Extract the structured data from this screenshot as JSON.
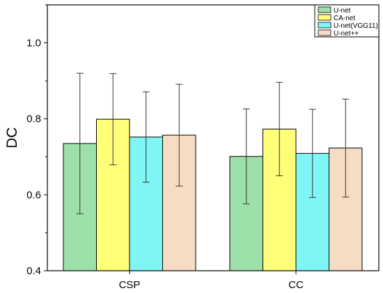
{
  "chart_data": {
    "type": "bar",
    "title": "",
    "xlabel": "",
    "ylabel": "DC",
    "ylim": [
      0.4,
      1.1
    ],
    "yticks": [
      0.4,
      0.6,
      0.8,
      1.0
    ],
    "ytick_labels": [
      "0.4",
      "0.6",
      "0.8",
      "1.0"
    ],
    "categories": [
      "CSP",
      "CC"
    ],
    "series": [
      {
        "name": "U-net",
        "color": "#9ee0a9",
        "values": [
          0.735,
          0.701
        ],
        "errors": [
          0.185,
          0.125
        ]
      },
      {
        "name": "CA-net",
        "color": "#ffff7a",
        "values": [
          0.799,
          0.773
        ],
        "errors": [
          0.12,
          0.123
        ]
      },
      {
        "name": "U-net(VGG11)",
        "color": "#7ff5f5",
        "values": [
          0.752,
          0.709
        ],
        "errors": [
          0.119,
          0.116
        ]
      },
      {
        "name": "U-net++",
        "color": "#f6dcc3",
        "values": [
          0.757,
          0.723
        ],
        "errors": [
          0.134,
          0.129
        ]
      }
    ],
    "legend_position": "top-right",
    "grid": false,
    "error_bars": true
  }
}
